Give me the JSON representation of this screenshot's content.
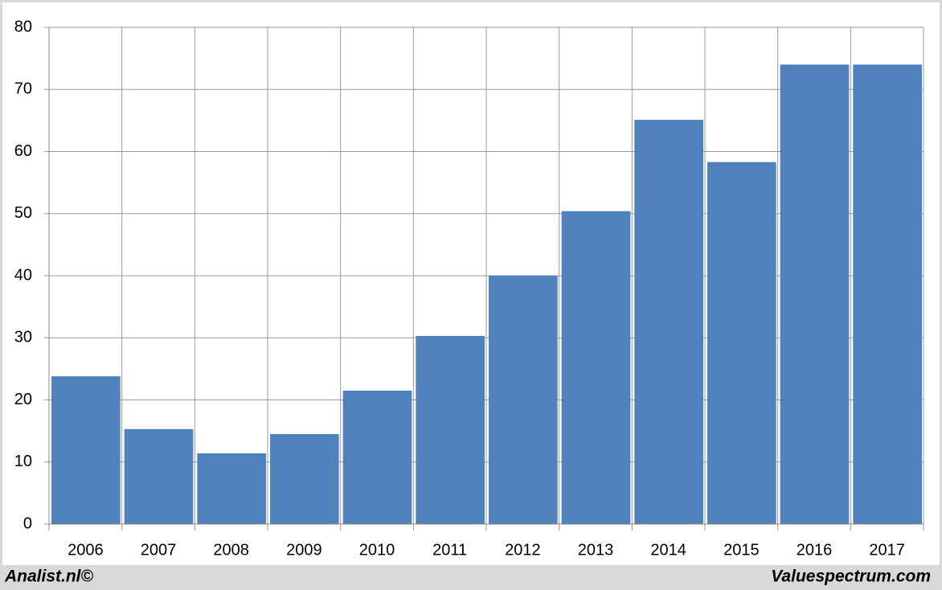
{
  "chart_data": {
    "type": "bar",
    "categories": [
      "2006",
      "2007",
      "2008",
      "2009",
      "2010",
      "2011",
      "2012",
      "2013",
      "2014",
      "2015",
      "2016",
      "2017"
    ],
    "values": [
      23.8,
      15.3,
      11.4,
      14.5,
      21.5,
      30.3,
      40,
      50.4,
      65.1,
      58.3,
      74,
      74
    ],
    "color": "#4f81bd",
    "ylim": [
      0,
      80
    ],
    "yticks": [
      0,
      10,
      20,
      30,
      40,
      50,
      60,
      70,
      80
    ],
    "grid": true
  },
  "footer": {
    "left": "Analist.nl©",
    "right": "Valuespectrum.com"
  }
}
